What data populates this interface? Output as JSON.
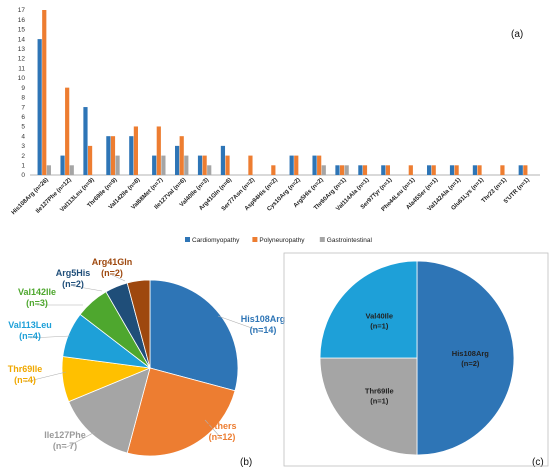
{
  "chart_data": [
    {
      "type": "bar",
      "panel_label": "(a)",
      "categories": [
        "His108Arg (n=26)",
        "Ile127Phe (n=12)",
        "Val113Leu (n=9)",
        "Thr69Ile (n=9)",
        "Val142Ile (n=8)",
        "Val68Met (n=7)",
        "Ile127Val (n=6)",
        "Val40Ile (n=3)",
        "Arg41Gln (n=6)",
        "Ser77Asn (n=2)",
        "Asp94His (n=2)",
        "Cys10Arg (n=2)",
        "Arg5His (n=2)",
        "Thr60Arg (n=1)",
        "Val114Ala (n=1)",
        "Ser97Tyr (n=1)",
        "Phe44Leu (n=1)",
        "Ala45Ser (n=1)",
        "Val142Ala (n=1)",
        "Glu61Lys (n=1)",
        "Thr23 (n=1)",
        "5'UTR (n=1)"
      ],
      "series": [
        {
          "name": "Cardiomyopathy",
          "color": "#2e75b6",
          "values": [
            14,
            2,
            7,
            4,
            4,
            2,
            3,
            2,
            3,
            0,
            0,
            2,
            2,
            1,
            1,
            1,
            0,
            1,
            1,
            1,
            0,
            1
          ]
        },
        {
          "name": "Polyneuropathy",
          "color": "#ed7d31",
          "values": [
            17,
            9,
            3,
            4,
            5,
            5,
            4,
            2,
            2,
            2,
            1,
            2,
            2,
            1,
            1,
            1,
            1,
            1,
            1,
            1,
            1,
            1
          ]
        },
        {
          "name": "Gastrointestinal",
          "color": "#a5a5a5",
          "values": [
            1,
            1,
            0,
            2,
            0,
            2,
            2,
            1,
            0,
            0,
            0,
            0,
            1,
            1,
            0,
            0,
            0,
            0,
            0,
            0,
            0,
            0
          ]
        }
      ],
      "ylim": [
        0,
        17
      ],
      "yticks": [
        0,
        1,
        2,
        3,
        4,
        5,
        6,
        7,
        8,
        9,
        10,
        11,
        12,
        13,
        14,
        15,
        16,
        17
      ],
      "grid": false,
      "legend_position": "bottom"
    },
    {
      "type": "pie",
      "panel_label": "(b)",
      "slices": [
        {
          "label": "His108Arg",
          "count": "(n=14)",
          "value": 14,
          "color": "#2e75b6"
        },
        {
          "label": "Others",
          "count": "(n=12)",
          "value": 12,
          "color": "#ed7d31"
        },
        {
          "label": "Ile127Phe",
          "count": "(n= 7)",
          "value": 7,
          "color": "#a5a5a5"
        },
        {
          "label": "Thr69Ile",
          "count": "(n=4)",
          "value": 4,
          "color": "#ffc000"
        },
        {
          "label": "Val113Leu",
          "count": "(n=4)",
          "value": 4,
          "color": "#1ea0d8"
        },
        {
          "label": "Val142Ile",
          "count": "(n=3)",
          "value": 3,
          "color": "#4ea72e"
        },
        {
          "label": "Arg5His",
          "count": "(n=2)",
          "value": 2,
          "color": "#1f4e79"
        },
        {
          "label": "Arg41Gln",
          "count": "(n=2)",
          "value": 2,
          "color": "#9e480e"
        }
      ]
    },
    {
      "type": "pie",
      "panel_label": "(c)",
      "slices": [
        {
          "label": "His108Arg",
          "count": "(n=2)",
          "value": 2,
          "color": "#2e75b6"
        },
        {
          "label": "Thr69Ile",
          "count": "(n=1)",
          "value": 1,
          "color": "#a5a5a5"
        },
        {
          "label": "Val40Ile",
          "count": "(n=1)",
          "value": 1,
          "color": "#1ea0d8"
        }
      ]
    }
  ]
}
